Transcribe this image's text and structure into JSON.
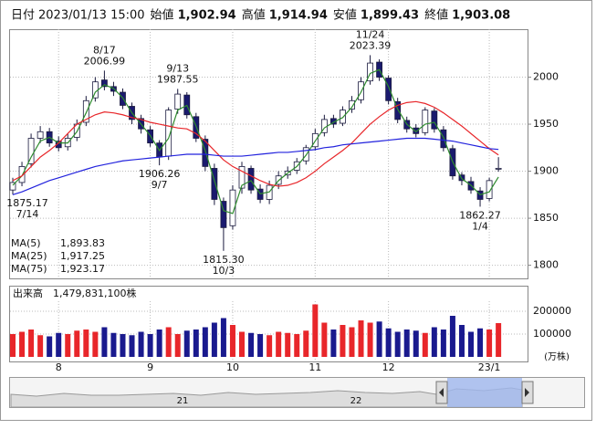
{
  "header": {
    "items": [
      {
        "label": "日付",
        "value": "2023/01/13 15:00"
      },
      {
        "label": "始値",
        "value": {
          "value": 1902.94,
          "label": "1,902.94"
        },
        "color": "#111111"
      },
      {
        "label": "高値",
        "value": {
          "value": 1914.94,
          "label": "1,914.94"
        },
        "color": "#e0201c"
      },
      {
        "label": "安値",
        "value": {
          "value": 1899.43,
          "label": "1,899.43"
        },
        "color": "#1a8a1a"
      },
      {
        "label": "終値",
        "value": {
          "value": 1903.08,
          "label": "1,903.08"
        },
        "color": "#111111"
      }
    ]
  },
  "chart_data": [
    {
      "type": "candlestick",
      "categories": [
        null,
        null,
        null,
        null,
        null,
        "8",
        null,
        null,
        null,
        null,
        null,
        null,
        null,
        null,
        null,
        "9",
        null,
        null,
        null,
        null,
        null,
        null,
        null,
        null,
        "10",
        null,
        null,
        null,
        null,
        null,
        null,
        null,
        null,
        "11",
        null,
        null,
        null,
        null,
        null,
        null,
        null,
        "12",
        null,
        null,
        null,
        null,
        null,
        null,
        null,
        null,
        null,
        null,
        "23/1",
        null
      ],
      "open": [
        1880,
        1888,
        1908,
        1935,
        1942,
        1932,
        1926,
        1936,
        1952,
        1978,
        1997,
        1990,
        1984,
        1969,
        1956,
        1944,
        1930,
        1916,
        1966,
        1981,
        1958,
        1934,
        1903,
        1868,
        1842,
        1882,
        1903,
        1881,
        1870,
        1886,
        1896,
        1901,
        1911,
        1926,
        1941,
        1956,
        1951,
        1966,
        1976,
        1996,
        2016,
        1999,
        1974,
        1954,
        1946,
        1941,
        1964,
        1944,
        1924,
        1896,
        1889,
        1879,
        1871,
        1902.94
      ],
      "high": [
        1893,
        1910,
        1940,
        1948,
        1946,
        1937,
        1940,
        1955,
        1980,
        2000,
        2006.99,
        1995,
        1988,
        1973,
        1960,
        1948,
        1933,
        1968,
        1987.55,
        1984,
        1962,
        1938,
        1908,
        1872,
        1885,
        1910,
        1906,
        1886,
        1890,
        1900,
        1905,
        1914,
        1928,
        1945,
        1960,
        1960,
        1969,
        1980,
        2000,
        2023.39,
        2019,
        2002,
        1978,
        1958,
        1950,
        1968,
        1967,
        1948,
        1928,
        1899,
        1894,
        1883,
        1893,
        1914.94
      ],
      "low": [
        1875.17,
        1884,
        1904,
        1930,
        1926,
        1921,
        1922,
        1932,
        1948,
        1974,
        1986,
        1980,
        1966,
        1950,
        1940,
        1926,
        1906.26,
        1912,
        1961,
        1956,
        1931,
        1900,
        1864,
        1815.3,
        1838,
        1876,
        1876,
        1866,
        1865,
        1881,
        1892,
        1897,
        1907,
        1922,
        1937,
        1946,
        1948,
        1962,
        1972,
        1992,
        1996,
        1971,
        1951,
        1941,
        1936,
        1938,
        1941,
        1921,
        1891,
        1885,
        1876,
        1862.27,
        1868,
        1899.43
      ],
      "close": [
        1888,
        1905,
        1935,
        1942,
        1930,
        1925,
        1935,
        1950,
        1975,
        1995,
        1990,
        1985,
        1970,
        1955,
        1945,
        1930,
        1915,
        1965,
        1982,
        1960,
        1935,
        1905,
        1870,
        1840,
        1880,
        1905,
        1880,
        1870,
        1885,
        1895,
        1900,
        1910,
        1925,
        1940,
        1955,
        1950,
        1965,
        1975,
        1995,
        2015,
        2000,
        1975,
        1955,
        1945,
        1940,
        1965,
        1945,
        1925,
        1895,
        1890,
        1880,
        1870,
        1890,
        1903.08
      ],
      "up_color": "#ffffff",
      "down_color": "#1a1a6e",
      "series": [
        {
          "name": "MA(5)",
          "color": "#2e8b2e",
          "legend_value": {
            "value": 1893.83,
            "label": "1,893.83"
          },
          "values": [
            1885,
            1895,
            1915,
            1932,
            1936,
            1930,
            1930,
            1942,
            1962,
            1984,
            1992,
            1988,
            1978,
            1962,
            1950,
            1938,
            1922,
            1935,
            1965,
            1970,
            1948,
            1922,
            1890,
            1858,
            1855,
            1885,
            1890,
            1876,
            1878,
            1890,
            1898,
            1905,
            1917,
            1932,
            1946,
            1952,
            1957,
            1968,
            1984,
            2004,
            2008,
            1990,
            1966,
            1950,
            1942,
            1950,
            1952,
            1936,
            1910,
            1892,
            1885,
            1875,
            1878,
            1893.83
          ]
        },
        {
          "name": "MA(25)",
          "color": "#e8262a",
          "legend_value": {
            "value": 1917.25,
            "label": "1,917.25"
          },
          "values": [
            1890,
            1895,
            1905,
            1915,
            1922,
            1930,
            1940,
            1950,
            1955,
            1960,
            1963,
            1962,
            1960,
            1957,
            1955,
            1952,
            1950,
            1948,
            1946,
            1945,
            1940,
            1932,
            1922,
            1912,
            1905,
            1900,
            1895,
            1890,
            1886,
            1884,
            1885,
            1888,
            1893,
            1900,
            1908,
            1915,
            1922,
            1930,
            1940,
            1950,
            1958,
            1965,
            1970,
            1973,
            1974,
            1972,
            1968,
            1962,
            1955,
            1948,
            1940,
            1932,
            1924,
            1917.25
          ]
        },
        {
          "name": "MA(75)",
          "color": "#2222dd",
          "legend_value": {
            "value": 1923.17,
            "label": "1,923.17"
          },
          "values": [
            1875,
            1878,
            1882,
            1886,
            1890,
            1893,
            1896,
            1899,
            1902,
            1905,
            1907,
            1909,
            1911,
            1912,
            1913,
            1914,
            1915,
            1916,
            1917,
            1918,
            1918,
            1918,
            1917,
            1916,
            1916,
            1916,
            1917,
            1918,
            1919,
            1920,
            1920,
            1921,
            1922,
            1923,
            1925,
            1926,
            1928,
            1929,
            1930,
            1931,
            1932,
            1933,
            1934,
            1935,
            1935,
            1935,
            1934,
            1933,
            1932,
            1930,
            1928,
            1926,
            1924,
            1923.17
          ]
        }
      ],
      "annotations": [
        {
          "kind": "low",
          "date": "7/14",
          "price": {
            "value": 1875.17,
            "label": "1875.17"
          }
        },
        {
          "kind": "high",
          "date": "8/17",
          "price": {
            "value": 2006.99,
            "label": "2006.99"
          }
        },
        {
          "kind": "low",
          "date": "9/7",
          "price": {
            "value": 1906.26,
            "label": "1906.26"
          }
        },
        {
          "kind": "high",
          "date": "9/13",
          "price": {
            "value": 1987.55,
            "label": "1987.55"
          }
        },
        {
          "kind": "low",
          "date": "10/3",
          "price": {
            "value": 1815.3,
            "label": "1815.30"
          }
        },
        {
          "kind": "high",
          "date": "11/24",
          "price": {
            "value": 2023.39,
            "label": "2023.39"
          }
        },
        {
          "kind": "low",
          "date": "1/4",
          "price": {
            "value": 1862.27,
            "label": "1862.27"
          }
        }
      ],
      "ylim": [
        1786,
        2051
      ],
      "yticks": [
        1800,
        1850,
        1900,
        1950,
        2000
      ],
      "grid": true
    },
    {
      "type": "bar",
      "title": "出来高",
      "total": {
        "value": 1479831100,
        "label": "1,479,831,100株"
      },
      "unit": "(万株)",
      "values": [
        100000,
        110000,
        120000,
        95000,
        90000,
        105000,
        100000,
        115000,
        120000,
        110000,
        130000,
        105000,
        100000,
        95000,
        110000,
        100000,
        120000,
        130000,
        100000,
        115000,
        120000,
        130000,
        150000,
        170000,
        140000,
        110000,
        105000,
        100000,
        95000,
        110000,
        105000,
        100000,
        115000,
        230000,
        150000,
        120000,
        140000,
        130000,
        160000,
        150000,
        155000,
        125000,
        110000,
        120000,
        115000,
        105000,
        130000,
        120000,
        180000,
        140000,
        110000,
        125000,
        120000,
        147983.11
      ],
      "up_color": "#e8262a",
      "down_color": "#1a1a8e",
      "ylim": [
        0,
        300000
      ],
      "yticks": [
        100000,
        200000
      ],
      "grid": true
    }
  ],
  "navigator": {
    "labels": [
      "21",
      "22"
    ]
  }
}
